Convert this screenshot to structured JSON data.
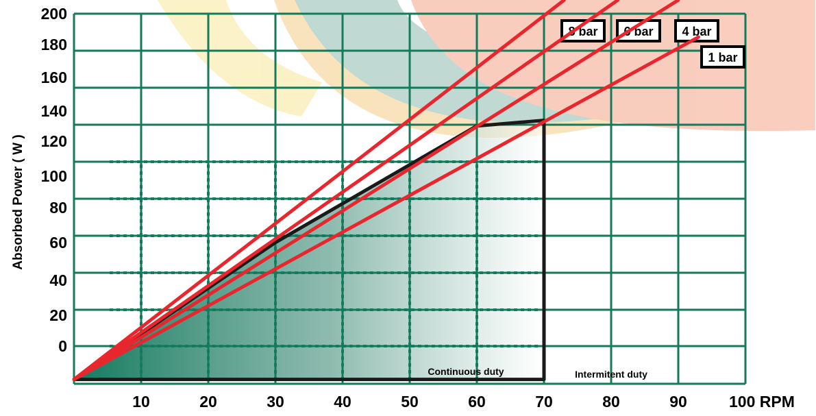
{
  "chart_data": {
    "type": "line",
    "title": "",
    "xlabel": "RPM",
    "ylabel": "Absorbed Power ( W )",
    "x_tick_labels": [
      "10",
      "20",
      "30",
      "40",
      "50",
      "60",
      "70",
      "80",
      "90",
      "100 RPM"
    ],
    "y_tick_labels": [
      "0",
      "20",
      "40",
      "60",
      "80",
      "100",
      "120",
      "140",
      "160",
      "180",
      "200"
    ],
    "grid": true,
    "colors": {
      "grid": "#157a5a",
      "series": "#e8262d",
      "envelope": "#1a1a1a",
      "fill": "#1f7a63"
    },
    "series": [
      {
        "name": "8 bar",
        "values": [
          [
            0,
            -18
          ],
          [
            73,
            187
          ]
        ]
      },
      {
        "name": "6 bar",
        "values": [
          [
            0,
            -18
          ],
          [
            81,
            187
          ]
        ]
      },
      {
        "name": "4 bar",
        "values": [
          [
            0,
            -18
          ],
          [
            90,
            187
          ]
        ]
      },
      {
        "name": "1 bar",
        "values": [
          [
            0,
            -18
          ],
          [
            93,
            167
          ]
        ]
      }
    ],
    "continuous_duty_envelope": [
      [
        0,
        -18
      ],
      [
        30,
        56
      ],
      [
        60,
        119
      ],
      [
        70,
        122
      ],
      [
        70,
        -18
      ]
    ],
    "region_labels": {
      "continuous": "Continuous duty",
      "intermittent": "Intermitent duty"
    }
  }
}
